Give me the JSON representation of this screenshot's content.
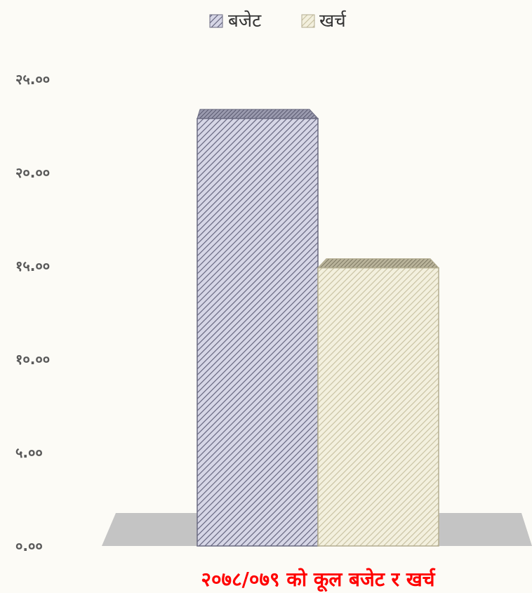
{
  "chart_data": {
    "type": "bar",
    "categories": [
      "२०७८/०७९ को कूल बजेट र खर्च"
    ],
    "series": [
      {
        "name": "बजेट",
        "values": [
          22.9
        ],
        "color": "#c9c9dc",
        "stroke": "#6a6a80"
      },
      {
        "name": "खर्च",
        "values": [
          14.9
        ],
        "color": "#ece9d4",
        "stroke": "#b3ad90"
      }
    ],
    "yticks": [
      "०.००",
      "५.००",
      "१०.००",
      "१५.००",
      "२०.००",
      "२५.००"
    ],
    "ylim": [
      0,
      25
    ],
    "xlabel": "२०७८/०७९ को कूल बजेट र खर्च",
    "legend_position": "top-center",
    "style": "3d hatched bars",
    "grid": false
  }
}
